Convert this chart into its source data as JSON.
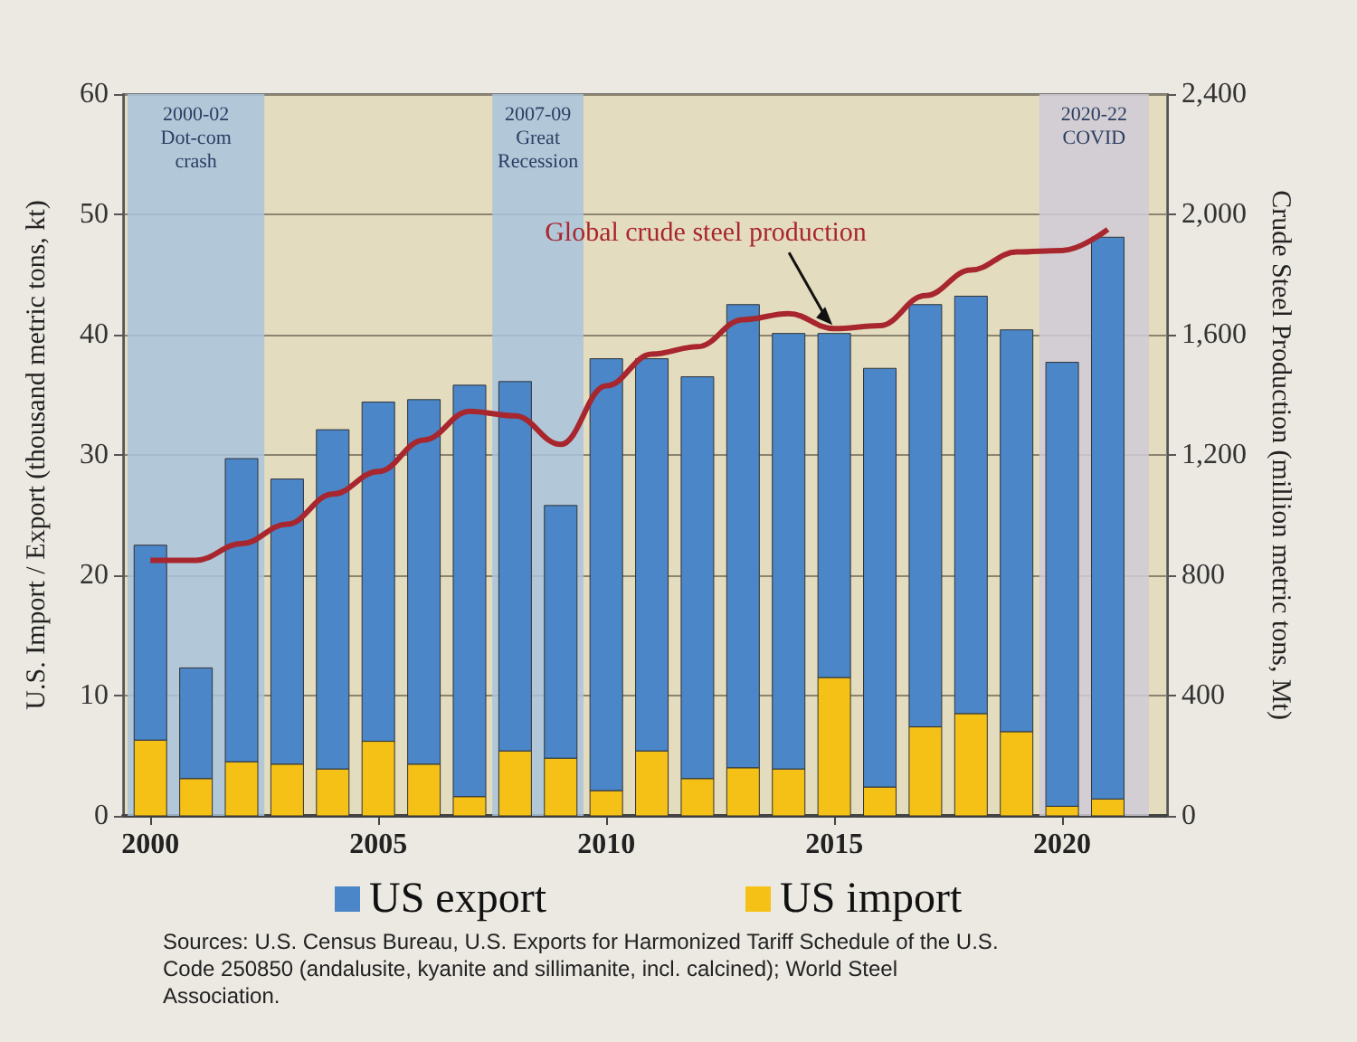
{
  "chart_data": {
    "type": "bar",
    "stacked": true,
    "x": [
      2000,
      2001,
      2002,
      2003,
      2004,
      2005,
      2006,
      2007,
      2008,
      2009,
      2010,
      2011,
      2012,
      2013,
      2014,
      2015,
      2016,
      2017,
      2018,
      2019,
      2020,
      2021
    ],
    "series": [
      {
        "name": "US import",
        "color": "#f5c116",
        "values": [
          6.3,
          3.1,
          4.5,
          4.3,
          3.9,
          6.2,
          4.3,
          1.6,
          5.4,
          4.8,
          2.1,
          5.4,
          3.1,
          4.0,
          3.9,
          11.5,
          2.4,
          7.4,
          8.5,
          7.0,
          0.8,
          1.4
        ]
      },
      {
        "name": "US export",
        "color": "#4a86c8",
        "values": [
          16.2,
          9.2,
          25.2,
          23.7,
          28.2,
          28.2,
          30.3,
          34.2,
          30.7,
          21.0,
          35.9,
          32.6,
          33.4,
          38.5,
          36.2,
          28.6,
          34.8,
          35.1,
          34.7,
          33.4,
          36.9,
          46.7
        ]
      },
      {
        "name": "Global crude steel production",
        "type": "line",
        "axis": "y2",
        "color": "#a8262e",
        "values": [
          850,
          850,
          905,
          970,
          1070,
          1145,
          1250,
          1345,
          1330,
          1235,
          1430,
          1535,
          1560,
          1650,
          1670,
          1620,
          1630,
          1730,
          1815,
          1875,
          1880,
          1950
        ]
      }
    ],
    "xlim": [
      1999.4,
      2022.3
    ],
    "xticks": [
      2000,
      2005,
      2010,
      2015,
      2020
    ],
    "ylim": [
      0,
      60
    ],
    "yticks": [
      0,
      10,
      20,
      30,
      40,
      50,
      60
    ],
    "y2lim": [
      0,
      2400
    ],
    "y2ticks": [
      {
        "value": 0,
        "label": "0"
      },
      {
        "value": 400,
        "label": "400"
      },
      {
        "value": 800,
        "label": "800"
      },
      {
        "value": 1200,
        "label": "1,200"
      },
      {
        "value": 1600,
        "label": "1,600"
      },
      {
        "value": 2000,
        "label": "2,000"
      },
      {
        "value": 2400,
        "label": "2,400"
      }
    ],
    "ylabel": "U.S. Import / Export (thousand metric tons, kt)",
    "y2label": "Crude Steel Production (million metric tons, Mt)",
    "bands": [
      {
        "axis": "x",
        "from": 1999.5,
        "to": 2002.5,
        "label": "2000-02\nDot-com\ncrash",
        "color": "#a9c3dc"
      },
      {
        "axis": "x",
        "from": 2007.5,
        "to": 2009.5,
        "label": "2007-09\nGreat\nRecession",
        "color": "#a9c3dc"
      },
      {
        "axis": "x",
        "from": 2019.5,
        "to": 2021.9,
        "label": "2020-22\nCOVID",
        "color": "#cfcbd6"
      }
    ],
    "annotations": [
      "Sources: U.S. Census Bureau, U.S. Exports for Harmonized Tariff Schedule of the U.S. Code 250850 (andalusite, kyanite and sillimanite, incl. calcined); World Steel Association."
    ],
    "grid": "y",
    "legend": "bottom",
    "marker": "none",
    "line_style": "solid"
  }
}
